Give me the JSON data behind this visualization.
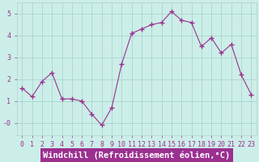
{
  "x": [
    0,
    1,
    2,
    3,
    4,
    5,
    6,
    7,
    8,
    9,
    10,
    11,
    12,
    13,
    14,
    15,
    16,
    17,
    18,
    19,
    20,
    21,
    22,
    23
  ],
  "y": [
    1.6,
    1.2,
    1.9,
    2.3,
    1.1,
    1.1,
    1.0,
    0.4,
    -0.1,
    0.7,
    2.7,
    4.1,
    4.3,
    4.5,
    4.6,
    5.1,
    4.7,
    4.6,
    3.5,
    3.9,
    3.2,
    3.6,
    2.2,
    1.3
  ],
  "line_color": "#9b3090",
  "marker": "+",
  "marker_size": 4,
  "marker_linewidth": 1.0,
  "line_width": 0.8,
  "xlabel": "Windchill (Refroidissement éolien,°C)",
  "xlim": [
    -0.5,
    23.5
  ],
  "ylim": [
    -0.55,
    5.5
  ],
  "ytick_labels": [
    "-0",
    "1",
    "2",
    "3",
    "4",
    "5"
  ],
  "ytick_values": [
    0,
    1,
    2,
    3,
    4,
    5
  ],
  "xticks": [
    0,
    1,
    2,
    3,
    4,
    5,
    6,
    7,
    8,
    9,
    10,
    11,
    12,
    13,
    14,
    15,
    16,
    17,
    18,
    19,
    20,
    21,
    22,
    23
  ],
  "background_color": "#cceee8",
  "grid_color": "#aad4ce",
  "tick_color": "#9b3090",
  "tick_fontsize": 6,
  "xlabel_fontsize": 7.5,
  "xlabel_color": "white",
  "xlabel_bg_color": "#9b3090",
  "fig_width": 3.2,
  "fig_height": 2.0,
  "dpi": 100
}
